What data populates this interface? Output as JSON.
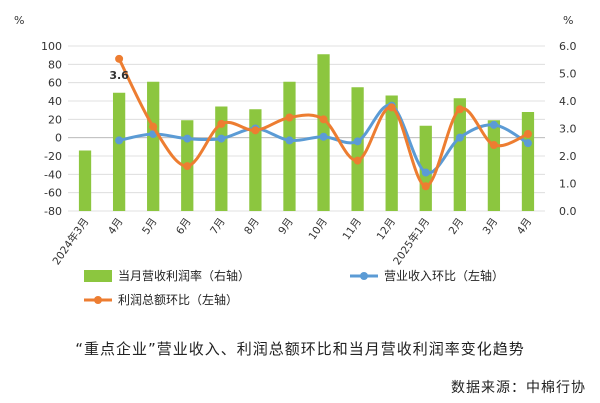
{
  "caption": "“重点企业”营业收入、利润总额环比和当月营收利润率变化趋势",
  "source": "数据来源：中棉行协",
  "chart_data": {
    "type": "bar+line",
    "categories": [
      "2024年3月",
      "4月",
      "5月",
      "6月",
      "7月",
      "8月",
      "9月",
      "10月",
      "11月",
      "12月",
      "2025年1月",
      "2月",
      "3月",
      "4月"
    ],
    "left_axis": {
      "unit": "%",
      "range": [
        -80,
        100
      ],
      "ticks": [
        100,
        80,
        60,
        40,
        20,
        0,
        -20,
        -40,
        -60,
        -80
      ]
    },
    "right_axis": {
      "unit": "%",
      "range": [
        0.0,
        6.0
      ],
      "ticks": [
        "6.0",
        "5.0",
        "4.0",
        "3.0",
        "2.0",
        "1.0",
        "0.0"
      ]
    },
    "series": [
      {
        "name": "当月营收利润率（右轴）",
        "type": "bar",
        "axis": "right",
        "color": "#8cc63f",
        "values": [
          2.2,
          4.3,
          4.7,
          3.3,
          3.8,
          3.7,
          4.7,
          5.7,
          4.5,
          4.2,
          3.1,
          4.1,
          3.3,
          3.6
        ]
      },
      {
        "name": "营业收入环比（左轴）",
        "type": "line",
        "axis": "left",
        "color": "#5b9bd5",
        "values": [
          null,
          -3,
          4,
          -1,
          -1,
          10,
          -3,
          1,
          -4,
          35,
          -38,
          0,
          14,
          -6
        ]
      },
      {
        "name": "利润总额环比（左轴）",
        "type": "line",
        "axis": "left",
        "color": "#ed7d31",
        "values": [
          null,
          86,
          12,
          -31,
          15,
          8,
          22,
          20,
          -25,
          33,
          -53,
          31,
          -8,
          4
        ]
      }
    ],
    "annotations": [
      {
        "category": "4月",
        "series": "当月营收利润率（右轴）",
        "text": "3.6"
      }
    ]
  }
}
